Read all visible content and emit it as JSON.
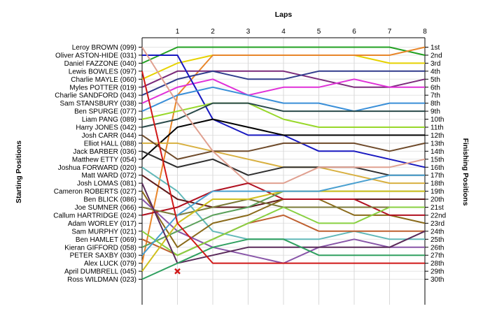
{
  "chart_data": {
    "type": "line",
    "xlabel": "Laps",
    "ylabel_left": "Starting Positions",
    "ylabel_right": "Finishing Positions",
    "x": [
      0,
      1,
      2,
      3,
      4,
      5,
      6,
      7,
      8
    ],
    "xlim": [
      0,
      8
    ],
    "ylim": [
      1,
      30
    ],
    "y_reversed": true,
    "grid": true,
    "starting_labels": [
      "Leroy BROWN (099)",
      "Oliver ASTON-HIDE (031)",
      "Daniel FAZZONE (040)",
      "Lewis BOWLES (097)",
      "Charlie MAYLE (060)",
      "Myles POTTER (019)",
      "Charlie SANDFORD (043)",
      "Sam STANSBURY (038)",
      "Ben SPURGE (077)",
      "Liam PANG (089)",
      "Harry JONES (042)",
      "Josh CARR (044)",
      "Elliot HALL (088)",
      "Jack BARBER (036)",
      "Matthew ETTY (054)",
      "Joshua FORWARD (020)",
      "Matt WARD (072)",
      "Josh LOMAS (081)",
      "Cameron ROBERTS (027)",
      "Ben BLICK (086)",
      "Joe SUMNER (066)",
      "Callum HARTRIDGE (024)",
      "Adam WORLEY (017)",
      "Sam MURPHY (021)",
      "Ben HAMLET (069)",
      "Kieran GIFFORD (058)",
      "PETER SAXBY (030)",
      "Alex LUCK (079)",
      "April DUMBRELL (045)",
      "Ross WILDMAN (023)"
    ],
    "finishing_labels": [
      "1st",
      "2nd",
      "3rd",
      "4th",
      "5th",
      "6th",
      "7th",
      "8th",
      "9th",
      "10th",
      "11th",
      "12th",
      "13th",
      "14th",
      "15th",
      "16th",
      "17th",
      "18th",
      "19th",
      "20th",
      "21st",
      "22nd",
      "23rd",
      "24th",
      "25th",
      "26th",
      "27th",
      "28th",
      "29th",
      "30th"
    ],
    "series": [
      {
        "values": [
          3,
          1,
          1,
          1,
          1,
          1,
          1,
          1,
          2
        ],
        "color": "#22a022"
      },
      {
        "values": [
          5,
          3,
          2,
          2,
          2,
          2,
          2,
          3,
          3
        ],
        "color": "#e6d200"
      },
      {
        "values": [
          28,
          7,
          2,
          2,
          2,
          2,
          2,
          2,
          1
        ],
        "color": "#e8862a"
      },
      {
        "values": [
          6,
          4,
          4,
          4,
          4,
          5,
          6,
          6,
          5
        ],
        "color": "#7a2a7a"
      },
      {
        "values": [
          7,
          5,
          4,
          5,
          5,
          4,
          4,
          4,
          4
        ],
        "color": "#303c8c"
      },
      {
        "values": [
          8,
          6,
          5,
          7,
          6,
          6,
          5,
          6,
          6
        ],
        "color": "#e030d8"
      },
      {
        "values": [
          2,
          2,
          10,
          12,
          12,
          14,
          14,
          15,
          16
        ],
        "color": "#1818c0"
      },
      {
        "values": [
          9,
          7,
          6,
          7,
          8,
          8,
          9,
          8,
          8
        ],
        "color": "#3a8fd8"
      },
      {
        "values": [
          10,
          9,
          8,
          8,
          10,
          11,
          11,
          11,
          11
        ],
        "color": "#98d82a"
      },
      {
        "values": [
          11,
          10,
          8,
          8,
          9,
          9,
          9,
          9,
          9
        ],
        "color": "#2a4a4a"
      },
      {
        "values": [
          15,
          11,
          10,
          11,
          12,
          12,
          12,
          12,
          12
        ],
        "color": "#000000"
      },
      {
        "values": [
          13,
          13,
          14,
          15,
          16,
          16,
          17,
          18,
          18
        ],
        "color": "#d8b040"
      },
      {
        "values": [
          12,
          15,
          14,
          14,
          13,
          13,
          13,
          14,
          13
        ],
        "color": "#6e4a2a"
      },
      {
        "values": [
          16,
          19,
          24,
          25,
          25,
          25,
          24,
          25,
          25
        ],
        "color": "#60b8b8"
      },
      {
        "values": [
          17,
          20,
          21,
          21,
          20,
          20,
          20,
          20,
          20
        ],
        "color": "#5e1a1a"
      },
      {
        "values": [
          14,
          16,
          15,
          17,
          16,
          16,
          16,
          17,
          17
        ],
        "color": "#2e2e2e"
      },
      {
        "values": [
          19,
          26,
          23,
          22,
          20,
          20,
          22,
          22,
          23
        ],
        "color": "#8a6a1a"
      },
      {
        "values": [
          1,
          8,
          14,
          18,
          18,
          16,
          16,
          16,
          15
        ],
        "color": "#e0a090"
      },
      {
        "values": [
          20,
          24,
          26,
          27,
          28,
          26,
          25,
          26,
          26
        ],
        "color": "#8855a8"
      },
      {
        "values": [
          22,
          21,
          19,
          18,
          20,
          20,
          20,
          22,
          22
        ],
        "color": "#b01020"
      },
      {
        "values": [
          26,
          24,
          22,
          21,
          19,
          19,
          19,
          19,
          19
        ],
        "color": "#5aa05a"
      },
      {
        "values": [
          21,
          22,
          21,
          20,
          21,
          21,
          21,
          21,
          21
        ],
        "color": "#7a7a38"
      },
      {
        "values": [
          25,
          27,
          25,
          23,
          22,
          24,
          24,
          24,
          24
        ],
        "color": "#bf6030"
      },
      {
        "values": [
          24,
          27,
          25,
          23,
          21,
          23,
          23,
          21,
          21
        ],
        "color": "#88d040"
      },
      {
        "values": [
          29,
          23,
          20,
          20,
          19,
          19,
          19,
          19,
          19
        ],
        "color": "#d0c020"
      },
      {
        "values": [
          27,
          22,
          19,
          19,
          19,
          19,
          18,
          17,
          17
        ],
        "color": "#4aa0d0"
      },
      {
        "values": [
          18,
          28,
          27,
          26,
          26,
          26,
          26,
          26,
          24
        ],
        "color": "#5a2a5a"
      },
      {
        "values": [
          30,
          28,
          26,
          25,
          25,
          27,
          27,
          27,
          27
        ],
        "color": "#30a060"
      },
      {
        "values": [
          4,
          23,
          28,
          28,
          28,
          28,
          28,
          28,
          28
        ],
        "color": "#d01818"
      }
    ],
    "retired_marker": {
      "x": 1,
      "y": 29,
      "color": "#d01818"
    }
  }
}
